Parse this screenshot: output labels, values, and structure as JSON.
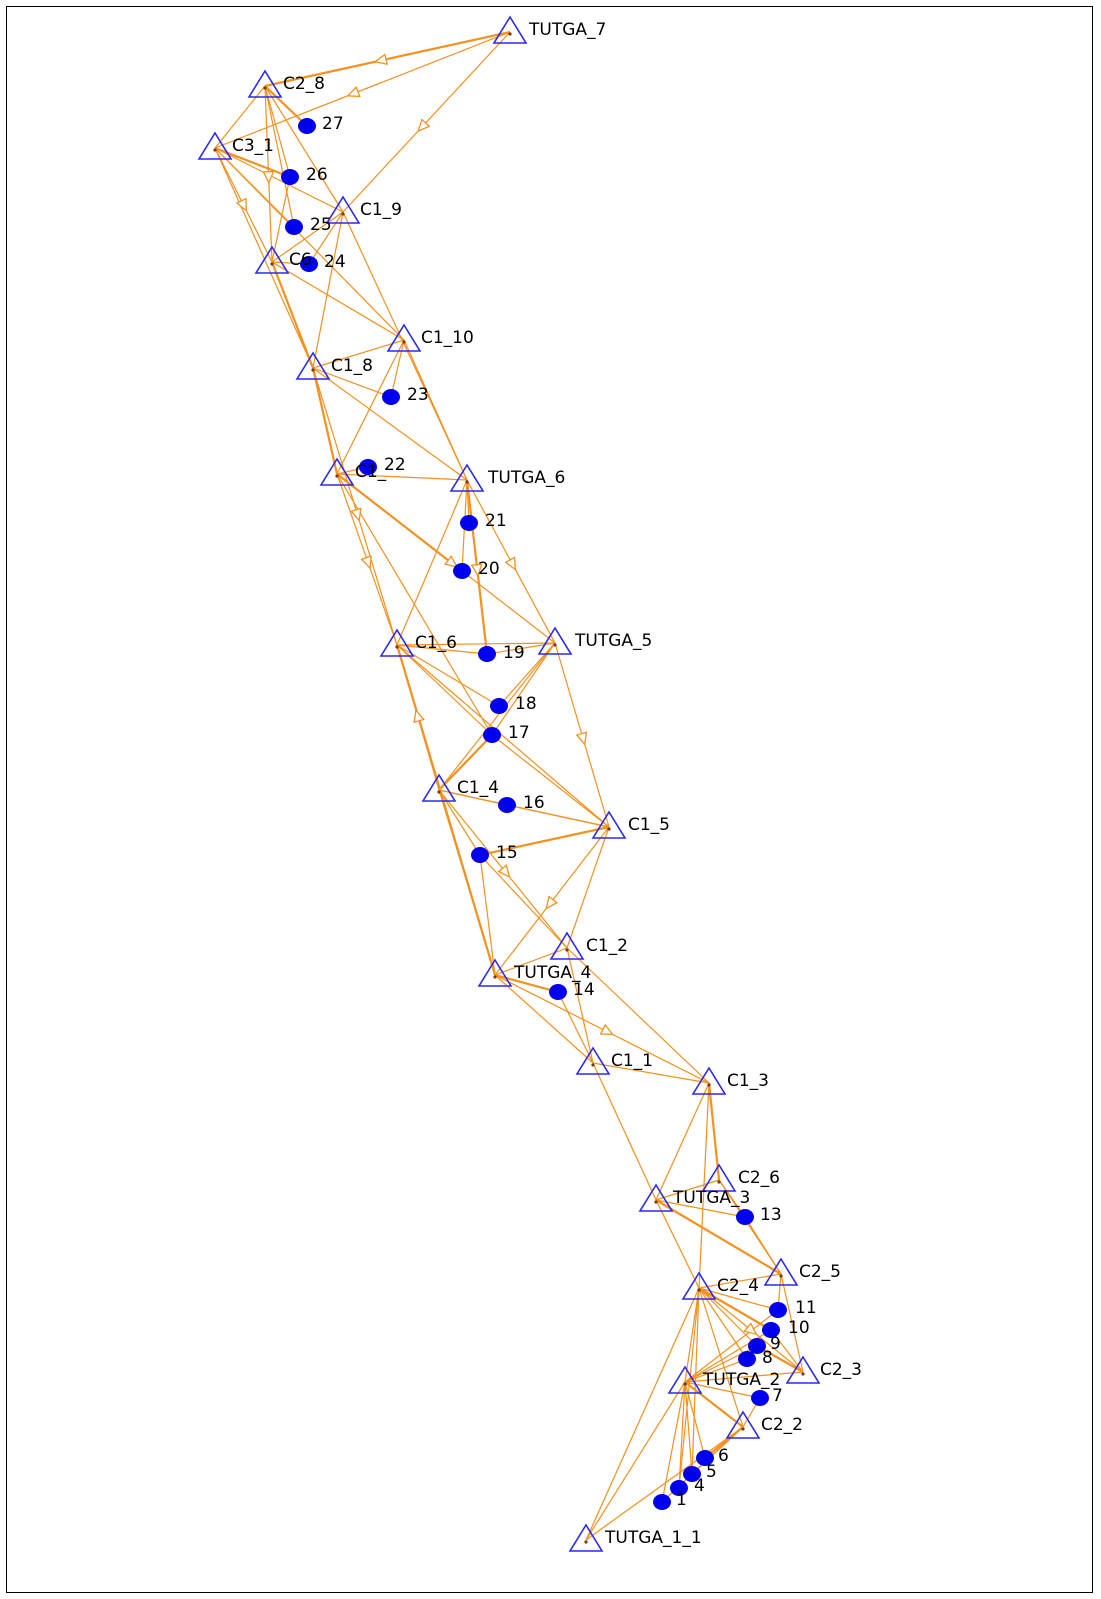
{
  "colors": {
    "station_stroke": "#2a2af0",
    "point_fill": "#0000ee",
    "edge": "#f6901e",
    "label": "#000000"
  },
  "stations": [
    {
      "id": "TUTGA_7",
      "label": "TUTGA_7"
    },
    {
      "id": "C2_8",
      "label": "C2_8"
    },
    {
      "id": "C3_1",
      "label": "C3_1"
    },
    {
      "id": "C1_9",
      "label": "C1_9"
    },
    {
      "id": "C6",
      "label": "C6"
    },
    {
      "id": "C1_10",
      "label": "C1_10"
    },
    {
      "id": "C1_8",
      "label": "C1_8"
    },
    {
      "id": "C1_7",
      "label": "C1_"
    },
    {
      "id": "TUTGA_6",
      "label": "TUTGA_6"
    },
    {
      "id": "C1_6",
      "label": "C1_6"
    },
    {
      "id": "TUTGA_5",
      "label": "TUTGA_5"
    },
    {
      "id": "C1_4",
      "label": "C1_4"
    },
    {
      "id": "C1_5",
      "label": "C1_5"
    },
    {
      "id": "C1_2",
      "label": "C1_2"
    },
    {
      "id": "TUTGA_4",
      "label": "TUTGA_4"
    },
    {
      "id": "C1_1",
      "label": "C1_1"
    },
    {
      "id": "C1_3",
      "label": "C1_3"
    },
    {
      "id": "C2_6",
      "label": "C2_6"
    },
    {
      "id": "TUTGA_3",
      "label": "TUTGA_3"
    },
    {
      "id": "C2_5",
      "label": "C2_5"
    },
    {
      "id": "C2_4",
      "label": "C2_4"
    },
    {
      "id": "C2_3",
      "label": "C2_3"
    },
    {
      "id": "TUTGA_2",
      "label": "TUTGA_2"
    },
    {
      "id": "C2_2",
      "label": "C2_2"
    },
    {
      "id": "TUTGA_1",
      "label": "TUTGA_1_1"
    }
  ],
  "points": [
    {
      "id": "P27",
      "label": "27"
    },
    {
      "id": "P26",
      "label": "26"
    },
    {
      "id": "P25",
      "label": "25"
    },
    {
      "id": "P24",
      "label": "24"
    },
    {
      "id": "P23",
      "label": "23"
    },
    {
      "id": "P22",
      "label": "22"
    },
    {
      "id": "P21",
      "label": "21"
    },
    {
      "id": "P20",
      "label": "20"
    },
    {
      "id": "P19",
      "label": "19"
    },
    {
      "id": "P18",
      "label": "18"
    },
    {
      "id": "P17",
      "label": "17"
    },
    {
      "id": "P16",
      "label": "16"
    },
    {
      "id": "P15",
      "label": "15"
    },
    {
      "id": "P14",
      "label": "14"
    },
    {
      "id": "P13",
      "label": "13"
    },
    {
      "id": "P11",
      "label": "11"
    },
    {
      "id": "P10",
      "label": "10"
    },
    {
      "id": "P9",
      "label": "9"
    },
    {
      "id": "P8",
      "label": "8"
    },
    {
      "id": "P7",
      "label": "7"
    },
    {
      "id": "P6",
      "label": "6"
    },
    {
      "id": "P5",
      "label": "5"
    },
    {
      "id": "P4",
      "label": "4"
    },
    {
      "id": "P1",
      "label": "1"
    }
  ],
  "edges": [
    [
      "TUTGA_7",
      "C2_8"
    ],
    [
      "TUTGA_7",
      "C3_1"
    ],
    [
      "TUTGA_7",
      "C1_9"
    ],
    [
      "TUTGA_7",
      "C2_8"
    ],
    [
      "C2_8",
      "C3_1"
    ],
    [
      "C2_8",
      "C1_9"
    ],
    [
      "C2_8",
      "C6"
    ],
    [
      "C2_8",
      "P27"
    ],
    [
      "C2_8",
      "P26"
    ],
    [
      "C2_8",
      "P25"
    ],
    [
      "C3_1",
      "C1_9"
    ],
    [
      "C3_1",
      "C6"
    ],
    [
      "C3_1",
      "C1_10"
    ],
    [
      "C3_1",
      "C1_8"
    ],
    [
      "C3_1",
      "P26"
    ],
    [
      "C3_1",
      "P25"
    ],
    [
      "C1_9",
      "C6"
    ],
    [
      "C1_9",
      "C1_8"
    ],
    [
      "C1_9",
      "TUTGA_6"
    ],
    [
      "C1_9",
      "P24"
    ],
    [
      "C6",
      "C1_10"
    ],
    [
      "C6",
      "C1_8"
    ],
    [
      "C6",
      "P24"
    ],
    [
      "C6",
      "P26"
    ],
    [
      "C1_10",
      "C1_8"
    ],
    [
      "C1_10",
      "C1_7"
    ],
    [
      "C1_10",
      "P23"
    ],
    [
      "C1_10",
      "TUTGA_6"
    ],
    [
      "C1_8",
      "C1_7"
    ],
    [
      "C1_8",
      "TUTGA_6"
    ],
    [
      "C1_8",
      "C1_6"
    ],
    [
      "C1_8",
      "P23"
    ],
    [
      "C1_7",
      "TUTGA_6"
    ],
    [
      "C1_7",
      "C1_6"
    ],
    [
      "C1_7",
      "TUTGA_5"
    ],
    [
      "C1_7",
      "P20"
    ],
    [
      "C1_7",
      "P17"
    ],
    [
      "C1_7",
      "P22"
    ],
    [
      "TUTGA_6",
      "C1_6"
    ],
    [
      "TUTGA_6",
      "TUTGA_5"
    ],
    [
      "TUTGA_6",
      "P21"
    ],
    [
      "TUTGA_6",
      "P20"
    ],
    [
      "TUTGA_6",
      "P19"
    ],
    [
      "C1_6",
      "TUTGA_5"
    ],
    [
      "C1_6",
      "C1_4"
    ],
    [
      "C1_6",
      "C1_5"
    ],
    [
      "C1_6",
      "P19"
    ],
    [
      "C1_6",
      "P18"
    ],
    [
      "C1_6",
      "P17"
    ],
    [
      "C1_6",
      "TUTGA_4"
    ],
    [
      "TUTGA_5",
      "C1_4"
    ],
    [
      "TUTGA_5",
      "C1_5"
    ],
    [
      "TUTGA_5",
      "P19"
    ],
    [
      "TUTGA_5",
      "P18"
    ],
    [
      "TUTGA_5",
      "P17"
    ],
    [
      "C1_4",
      "C1_5"
    ],
    [
      "C1_4",
      "P17"
    ],
    [
      "C1_4",
      "P16"
    ],
    [
      "C1_4",
      "P15"
    ],
    [
      "C1_4",
      "TUTGA_4"
    ],
    [
      "C1_4",
      "C1_2"
    ],
    [
      "C1_5",
      "C1_2"
    ],
    [
      "C1_5",
      "TUTGA_4"
    ],
    [
      "C1_5",
      "P15"
    ],
    [
      "C1_5",
      "P16"
    ],
    [
      "C1_5",
      "P17"
    ],
    [
      "C1_2",
      "TUTGA_4"
    ],
    [
      "C1_2",
      "P15"
    ],
    [
      "C1_2",
      "C1_1"
    ],
    [
      "C1_2",
      "C1_3"
    ],
    [
      "TUTGA_4",
      "P14"
    ],
    [
      "TUTGA_4",
      "C1_1"
    ],
    [
      "TUTGA_4",
      "C1_3"
    ],
    [
      "TUTGA_4",
      "P15"
    ],
    [
      "C1_1",
      "C1_3"
    ],
    [
      "C1_1",
      "TUTGA_3"
    ],
    [
      "C1_1",
      "P14"
    ],
    [
      "C1_3",
      "C2_6"
    ],
    [
      "C1_3",
      "TUTGA_3"
    ],
    [
      "C1_3",
      "C2_4"
    ],
    [
      "C2_6",
      "TUTGA_3"
    ],
    [
      "C2_6",
      "C2_5"
    ],
    [
      "C2_6",
      "P13"
    ],
    [
      "TUTGA_3",
      "C2_4"
    ],
    [
      "TUTGA_3",
      "C2_5"
    ],
    [
      "TUTGA_3",
      "P13"
    ],
    [
      "C2_5",
      "C2_4"
    ],
    [
      "C2_5",
      "C2_3"
    ],
    [
      "C2_5",
      "P11"
    ],
    [
      "C2_5",
      "P13"
    ],
    [
      "C2_4",
      "P11"
    ],
    [
      "C2_4",
      "P10"
    ],
    [
      "C2_4",
      "P9"
    ],
    [
      "C2_4",
      "P8"
    ],
    [
      "C2_4",
      "C2_3"
    ],
    [
      "C2_4",
      "TUTGA_2"
    ],
    [
      "C2_4",
      "C2_2"
    ],
    [
      "C2_3",
      "P10"
    ],
    [
      "C2_3",
      "P9"
    ],
    [
      "C2_3",
      "TUTGA_2"
    ],
    [
      "TUTGA_2",
      "P11"
    ],
    [
      "TUTGA_2",
      "P10"
    ],
    [
      "TUTGA_2",
      "P9"
    ],
    [
      "TUTGA_2",
      "P8"
    ],
    [
      "TUTGA_2",
      "P7"
    ],
    [
      "TUTGA_2",
      "C2_2"
    ],
    [
      "TUTGA_2",
      "P6"
    ],
    [
      "TUTGA_2",
      "P5"
    ],
    [
      "TUTGA_2",
      "P4"
    ],
    [
      "TUTGA_2",
      "P1"
    ],
    [
      "TUTGA_2",
      "TUTGA_1"
    ],
    [
      "C2_2",
      "P7"
    ],
    [
      "C2_2",
      "P6"
    ],
    [
      "C2_2",
      "P5"
    ],
    [
      "C2_2",
      "TUTGA_1"
    ],
    [
      "C2_2",
      "P1"
    ],
    [
      "C2_4",
      "TUTGA_1"
    ],
    [
      "C2_4",
      "P5"
    ],
    [
      "C2_4",
      "P4"
    ]
  ],
  "arrows": [
    [
      "TUTGA_7",
      "C2_8"
    ],
    [
      "TUTGA_7",
      "C1_9"
    ],
    [
      "TUTGA_7",
      "C3_1"
    ],
    [
      "C2_8",
      "C6"
    ],
    [
      "C3_1",
      "C6"
    ],
    [
      "C1_8",
      "C1_6"
    ],
    [
      "C1_7",
      "C1_6"
    ],
    [
      "C1_7",
      "TUTGA_5"
    ],
    [
      "TUTGA_6",
      "TUTGA_5"
    ],
    [
      "TUTGA_6",
      "P19"
    ],
    [
      "C1_4",
      "C1_6"
    ],
    [
      "C1_5",
      "TUTGA_4"
    ],
    [
      "TUTGA_4",
      "C1_3"
    ],
    [
      "C2_4",
      "C2_3"
    ],
    [
      "C1_4",
      "C1_2"
    ],
    [
      "TUTGA_5",
      "C1_5"
    ]
  ]
}
